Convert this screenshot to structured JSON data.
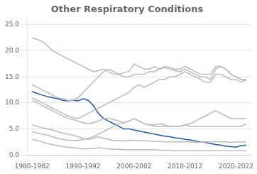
{
  "chart_data": {
    "type": "line",
    "title": "Other Respiratory Conditions",
    "x": [
      1980,
      1981,
      1982,
      1983,
      1984,
      1985,
      1986,
      1987,
      1988,
      1989,
      1990,
      1991,
      1992,
      1993,
      1994,
      1995,
      1996,
      1997,
      1998,
      1999,
      2000,
      2001,
      2002,
      2003,
      2004,
      2005,
      2006,
      2007,
      2008,
      2009,
      2010,
      2011,
      2012,
      2013,
      2014,
      2015,
      2016,
      2017,
      2018,
      2019,
      2020,
      2021,
      2022
    ],
    "series": [
      {
        "color": "#BBBBBB",
        "values": [
          22.5,
          22.2,
          21.8,
          21.0,
          20.0,
          19.5,
          19.0,
          18.5,
          18.0,
          17.5,
          17.0,
          16.5,
          16.0,
          16.2,
          16.5,
          16.0,
          15.5,
          15.5,
          15.8,
          16.0,
          17.5,
          17.0,
          16.5,
          16.5,
          17.0,
          16.5,
          16.8,
          16.5,
          16.2,
          16.0,
          16.5,
          16.0,
          15.5,
          15.0,
          15.0,
          14.5,
          16.5,
          17.0,
          16.5,
          15.5,
          15.0,
          14.5,
          14.2
        ]
      },
      {
        "color": "#BBBBBB",
        "values": [
          5.8,
          5.5,
          5.2,
          5.0,
          4.8,
          4.5,
          4.2,
          4.0,
          3.8,
          3.5,
          3.2,
          3.0,
          3.2,
          3.5,
          3.2,
          3.0,
          2.8,
          2.8,
          2.7,
          2.8,
          2.8,
          2.8,
          2.7,
          2.7,
          2.6,
          2.6,
          2.5,
          2.5,
          2.5,
          2.5,
          2.5,
          2.5,
          2.4,
          2.4,
          2.5,
          2.5,
          2.6,
          2.5,
          2.5,
          2.4,
          2.5,
          2.5,
          2.5
        ]
      },
      {
        "color": "#BBBBBB",
        "values": [
          3.0,
          2.8,
          2.5,
          2.2,
          2.0,
          1.8,
          1.6,
          1.5,
          1.4,
          1.3,
          1.2,
          1.2,
          1.3,
          1.4,
          1.3,
          1.2,
          1.1,
          1.1,
          1.0,
          1.0,
          1.0,
          1.0,
          1.0,
          1.0,
          1.0,
          0.9,
          0.9,
          0.9,
          0.8,
          0.8,
          0.8,
          0.8,
          0.8,
          0.8,
          0.8,
          0.8,
          0.8,
          0.8,
          0.8,
          0.8,
          0.8,
          0.8,
          0.8
        ]
      },
      {
        "color": "#BBBBBB",
        "values": [
          10.5,
          10.0,
          9.5,
          9.0,
          8.5,
          8.0,
          7.5,
          7.0,
          6.8,
          6.5,
          6.2,
          6.0,
          6.2,
          6.5,
          7.0,
          7.0,
          6.8,
          6.5,
          6.2,
          6.5,
          7.0,
          6.5,
          6.0,
          5.8,
          5.8,
          6.0,
          5.8,
          5.5,
          5.5,
          5.5,
          5.8,
          5.5,
          5.5,
          5.5,
          5.5,
          5.5,
          5.5,
          5.5,
          5.5,
          5.5,
          5.5,
          5.5,
          6.0
        ]
      },
      {
        "color": "#BBBBBB",
        "values": [
          13.5,
          13.0,
          12.5,
          12.0,
          11.5,
          11.0,
          10.8,
          10.5,
          10.5,
          11.0,
          12.0,
          13.0,
          14.0,
          15.0,
          16.0,
          16.5,
          16.0,
          15.5,
          15.0,
          15.0,
          15.5,
          15.5,
          15.5,
          16.0,
          16.0,
          16.5,
          17.0,
          16.8,
          16.5,
          16.5,
          17.0,
          16.5,
          16.0,
          15.5,
          15.5,
          15.5,
          17.0,
          17.0,
          16.5,
          15.5,
          15.0,
          14.5,
          14.5
        ]
      },
      {
        "color": "#BBBBBB",
        "values": [
          4.5,
          4.2,
          4.0,
          3.8,
          3.5,
          3.2,
          3.0,
          2.8,
          2.8,
          2.8,
          3.0,
          3.2,
          3.5,
          4.0,
          4.5,
          5.0,
          5.5,
          6.0,
          6.2,
          6.5,
          7.0,
          6.5,
          6.0,
          5.8,
          5.5,
          5.5,
          5.5,
          5.5,
          5.5,
          5.5,
          5.8,
          6.0,
          6.5,
          7.0,
          7.5,
          8.0,
          8.5,
          8.0,
          7.5,
          7.0,
          7.0,
          7.0,
          7.0
        ]
      },
      {
        "color": "#BBBBBB",
        "values": [
          11.0,
          10.5,
          10.0,
          9.5,
          9.0,
          8.5,
          8.0,
          7.5,
          7.2,
          7.0,
          7.5,
          8.0,
          8.5,
          9.0,
          9.5,
          10.0,
          10.5,
          11.0,
          11.5,
          12.0,
          13.0,
          13.5,
          13.0,
          13.5,
          14.0,
          14.5,
          14.5,
          15.0,
          15.0,
          15.5,
          16.0,
          15.5,
          15.0,
          14.5,
          14.0,
          14.0,
          15.5,
          15.5,
          15.0,
          14.5,
          14.5,
          14.0,
          14.5
        ]
      },
      {
        "color": "#1F5B9E",
        "values": [
          12.2,
          11.8,
          11.5,
          11.2,
          11.0,
          10.8,
          10.5,
          10.4,
          10.5,
          10.4,
          10.8,
          10.5,
          9.5,
          8.0,
          7.0,
          6.5,
          6.0,
          5.5,
          5.0,
          5.0,
          4.8,
          4.6,
          4.4,
          4.2,
          4.0,
          3.8,
          3.6,
          3.5,
          3.3,
          3.2,
          3.0,
          2.9,
          2.7,
          2.5,
          2.4,
          2.2,
          2.0,
          1.9,
          1.7,
          1.6,
          1.5,
          1.8,
          1.9
        ]
      }
    ],
    "xlim": [
      1979,
      2023
    ],
    "xticks": [
      {
        "value": 1980,
        "label": "1980-1982"
      },
      {
        "value": 1990,
        "label": "1990-1992"
      },
      {
        "value": 2000,
        "label": "2000-2002"
      },
      {
        "value": 2010,
        "label": "2010-2012"
      },
      {
        "value": 2020,
        "label": "2020-2022"
      }
    ],
    "ylim": [
      0,
      26
    ],
    "yticks": [
      {
        "value": 0,
        "label": "0.0"
      },
      {
        "value": 5,
        "label": "5.0"
      },
      {
        "value": 10,
        "label": "10.0"
      },
      {
        "value": 15,
        "label": "15.0"
      },
      {
        "value": 20,
        "label": "20.0"
      },
      {
        "value": 25,
        "label": "25.0"
      }
    ],
    "grid": "y"
  }
}
